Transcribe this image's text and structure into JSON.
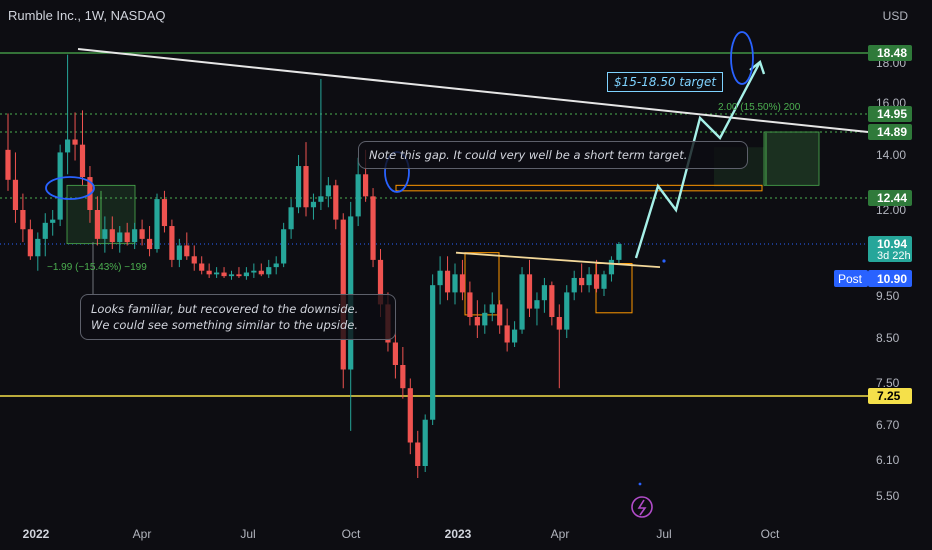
{
  "header": {
    "title": "Rumble Inc., 1W, NASDAQ",
    "currency": "USD"
  },
  "price_axis": {
    "ticks": [
      "18.00",
      "16.00",
      "14.00",
      "12.00",
      "9.50",
      "8.50",
      "7.50",
      "6.70",
      "6.10",
      "5.50"
    ],
    "tags": [
      {
        "label": "18.48",
        "price": 18.48,
        "bg": "#2f7a3a",
        "fg": "#ffffff"
      },
      {
        "label": "14.95",
        "price": 14.95,
        "bg": "#2f7a3a",
        "fg": "#ffffff"
      },
      {
        "label": "14.89",
        "price": 14.89,
        "bg": "#2f7a3a",
        "fg": "#ffffff"
      },
      {
        "label": "12.44",
        "price": 12.44,
        "bg": "#2f7a3a",
        "fg": "#ffffff"
      },
      {
        "label": "10.94",
        "price": 10.94,
        "bg": "#26a69a",
        "fg": "#ffffff",
        "sub": "3d 22h"
      },
      {
        "label": "7.25",
        "price": 7.25,
        "bg": "#f5e04a",
        "fg": "#000000"
      }
    ],
    "post": {
      "label": "Post",
      "value": "10.90"
    }
  },
  "time_axis": {
    "labels": [
      "2022",
      "Apr",
      "Jul",
      "Oct",
      "2023",
      "Apr",
      "Jul",
      "Oct"
    ]
  },
  "annotations": {
    "gap_note": "Note this gap. It could very well be a short term target.",
    "familiar_note_line1": "Looks familiar, but recovered to the downside.",
    "familiar_note_line2": "We could see something similar to the upside.",
    "target_box": "$15-18.50 target",
    "measure_left": "−1.99 (−15.43%) −199",
    "measure_right": "2.00 (15.50%) 200"
  },
  "chart_data": {
    "type": "candlestick",
    "title": "Rumble Inc., 1W, NASDAQ",
    "currency": "USD",
    "last_price": 10.94,
    "post_market": 10.9,
    "ylim": [
      5.2,
      19.5
    ],
    "horizontal_levels": [
      18.48,
      14.95,
      14.89,
      12.44,
      7.25
    ],
    "x_labels": [
      "2022",
      "Apr",
      "Jul",
      "Oct",
      "2023",
      "Apr",
      "Jul",
      "Oct"
    ],
    "series": [
      {
        "values": [
          [
            14.2,
            15.0,
            12.7,
            13.1
          ],
          [
            13.1,
            14.1,
            11.6,
            12.0
          ],
          [
            12.0,
            12.6,
            11.0,
            11.4
          ],
          [
            11.4,
            11.7,
            10.5,
            10.6
          ],
          [
            10.6,
            11.3,
            10.2,
            11.1
          ],
          [
            11.1,
            11.9,
            10.6,
            11.6
          ],
          [
            11.6,
            12.0,
            11.2,
            11.7
          ],
          [
            11.7,
            14.4,
            11.5,
            14.1
          ],
          [
            14.1,
            18.4,
            13.3,
            14.6
          ],
          [
            14.6,
            15.1,
            13.8,
            14.4
          ],
          [
            14.4,
            15.3,
            12.9,
            13.2
          ],
          [
            13.2,
            13.6,
            11.6,
            12.0
          ],
          [
            12.0,
            12.5,
            10.9,
            11.1
          ],
          [
            11.1,
            11.8,
            10.7,
            11.4
          ],
          [
            11.4,
            11.8,
            10.8,
            11.0
          ],
          [
            11.0,
            11.5,
            10.7,
            11.3
          ],
          [
            11.3,
            11.6,
            10.9,
            11.0
          ],
          [
            11.0,
            11.6,
            10.8,
            11.4
          ],
          [
            11.4,
            11.7,
            10.9,
            11.1
          ],
          [
            11.1,
            11.5,
            10.6,
            10.8
          ],
          [
            10.8,
            12.6,
            10.7,
            12.4
          ],
          [
            12.4,
            12.7,
            11.3,
            11.5
          ],
          [
            11.5,
            11.7,
            10.3,
            10.5
          ],
          [
            10.5,
            11.1,
            10.3,
            10.9
          ],
          [
            10.9,
            11.3,
            10.5,
            10.6
          ],
          [
            10.6,
            10.9,
            10.2,
            10.4
          ],
          [
            10.4,
            10.6,
            10.1,
            10.2
          ],
          [
            10.2,
            10.4,
            10.0,
            10.1
          ],
          [
            10.1,
            10.3,
            10.0,
            10.15
          ],
          [
            10.15,
            10.3,
            10.0,
            10.05
          ],
          [
            10.05,
            10.2,
            9.95,
            10.1
          ],
          [
            10.1,
            10.3,
            10.0,
            10.05
          ],
          [
            10.05,
            10.3,
            9.95,
            10.15
          ],
          [
            10.15,
            10.4,
            10.0,
            10.2
          ],
          [
            10.2,
            10.4,
            10.05,
            10.1
          ],
          [
            10.1,
            10.5,
            10.0,
            10.3
          ],
          [
            10.3,
            10.6,
            10.1,
            10.4
          ],
          [
            10.4,
            11.6,
            10.3,
            11.4
          ],
          [
            11.4,
            12.4,
            11.1,
            12.1
          ],
          [
            12.1,
            14.0,
            11.9,
            13.6
          ],
          [
            13.6,
            14.5,
            11.8,
            12.1
          ],
          [
            12.1,
            12.6,
            11.7,
            12.3
          ],
          [
            12.3,
            17.2,
            12.0,
            12.5
          ],
          [
            12.5,
            13.2,
            12.1,
            12.9
          ],
          [
            12.9,
            13.1,
            11.4,
            11.7
          ],
          [
            11.7,
            11.9,
            7.4,
            7.8
          ],
          [
            7.8,
            12.3,
            6.6,
            11.8
          ],
          [
            11.8,
            13.9,
            11.5,
            13.3
          ],
          [
            13.3,
            14.2,
            12.3,
            12.5
          ],
          [
            12.5,
            12.8,
            10.3,
            10.5
          ],
          [
            10.5,
            10.8,
            9.0,
            9.3
          ],
          [
            9.3,
            9.6,
            8.2,
            8.4
          ],
          [
            8.4,
            8.9,
            7.6,
            7.9
          ],
          [
            7.9,
            8.3,
            7.2,
            7.4
          ],
          [
            7.4,
            7.6,
            6.2,
            6.4
          ],
          [
            6.4,
            6.6,
            5.8,
            6.0
          ],
          [
            6.0,
            6.9,
            5.9,
            6.8
          ],
          [
            6.8,
            10.1,
            6.7,
            9.8
          ],
          [
            9.8,
            10.6,
            9.3,
            10.2
          ],
          [
            10.2,
            10.6,
            9.4,
            9.6
          ],
          [
            9.6,
            10.4,
            9.3,
            10.1
          ],
          [
            10.1,
            10.5,
            9.4,
            9.6
          ],
          [
            9.6,
            9.9,
            8.8,
            9.0
          ],
          [
            9.0,
            9.4,
            8.5,
            8.8
          ],
          [
            8.8,
            9.3,
            8.6,
            9.1
          ],
          [
            9.1,
            9.6,
            8.9,
            9.3
          ],
          [
            9.3,
            9.4,
            8.6,
            8.8
          ],
          [
            8.8,
            9.2,
            8.2,
            8.4
          ],
          [
            8.4,
            8.9,
            8.3,
            8.7
          ],
          [
            8.7,
            10.3,
            8.6,
            10.1
          ],
          [
            10.1,
            10.5,
            9.0,
            9.2
          ],
          [
            9.2,
            9.6,
            8.8,
            9.4
          ],
          [
            9.4,
            10.0,
            9.1,
            9.8
          ],
          [
            9.8,
            9.9,
            8.8,
            9.0
          ],
          [
            9.0,
            9.3,
            7.4,
            8.7
          ],
          [
            8.7,
            9.8,
            8.5,
            9.6
          ],
          [
            9.6,
            10.2,
            9.4,
            10.0
          ],
          [
            10.0,
            10.4,
            9.6,
            9.8
          ],
          [
            9.8,
            10.3,
            9.6,
            10.1
          ],
          [
            10.1,
            10.5,
            9.6,
            9.7
          ],
          [
            9.7,
            10.2,
            9.5,
            10.1
          ],
          [
            10.1,
            10.6,
            9.9,
            10.5
          ],
          [
            10.5,
            11.0,
            10.4,
            10.94
          ]
        ]
      }
    ]
  }
}
